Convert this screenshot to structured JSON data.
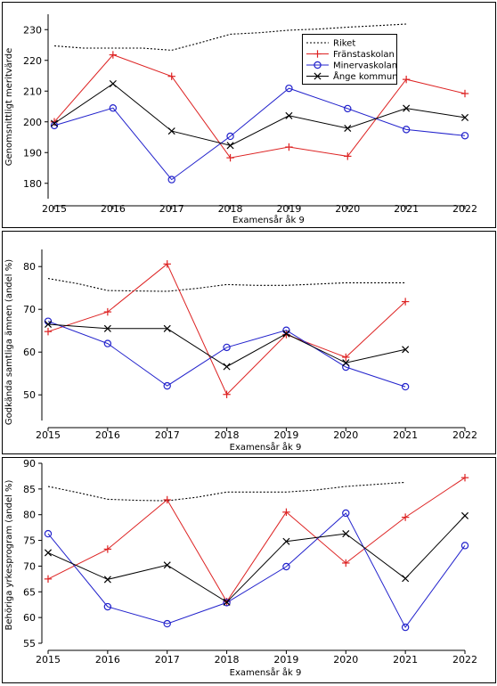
{
  "chart_data": [
    {
      "type": "line",
      "xlabel": "Examensår åk 9",
      "ylabel": "Genomsnittligt meritvärde",
      "xlim": [
        2015,
        2022
      ],
      "ylim": [
        175,
        235
      ],
      "xticks": [
        "2015",
        "2016",
        "2017",
        "2018",
        "2019",
        "2020",
        "2021",
        "2022"
      ],
      "yticks": [
        "180",
        "190",
        "200",
        "210",
        "220",
        "230"
      ],
      "legend": {
        "position": "top-right",
        "entries": [
          "Riket",
          "Fränstaskolan",
          "Minervaskolan",
          "Ånge kommun"
        ]
      },
      "series": [
        {
          "name": "Riket",
          "color": "#000000",
          "style": "dotted",
          "marker": "none",
          "x": [
            2015,
            2015.5,
            2016,
            2016.5,
            2017,
            2017.5,
            2018,
            2018.5,
            2019,
            2019.5,
            2020,
            2020.5,
            2021
          ],
          "y": [
            224.7,
            224.0,
            224.0,
            224.0,
            223.3,
            225.8,
            228.5,
            229.0,
            229.8,
            230.2,
            230.8,
            231.3,
            231.8
          ]
        },
        {
          "name": "Fränstaskolan",
          "color": "#dd2222",
          "style": "solid",
          "marker": "plus",
          "x": [
            2015,
            2016,
            2017,
            2018,
            2019,
            2020,
            2021,
            2022
          ],
          "y": [
            200.0,
            221.8,
            214.8,
            188.3,
            191.8,
            188.8,
            213.8,
            209.2
          ]
        },
        {
          "name": "Minervaskolan",
          "color": "#2222cc",
          "style": "solid",
          "marker": "circle",
          "x": [
            2015,
            2016,
            2017,
            2018,
            2019,
            2020,
            2021,
            2022
          ],
          "y": [
            198.8,
            204.5,
            181.2,
            195.3,
            210.9,
            204.3,
            197.5,
            195.5
          ]
        },
        {
          "name": "Ånge kommun",
          "color": "#000000",
          "style": "solid",
          "marker": "x",
          "x": [
            2015,
            2016,
            2017,
            2018,
            2019,
            2020,
            2021,
            2022
          ],
          "y": [
            199.5,
            212.4,
            197.0,
            192.3,
            202.0,
            197.9,
            204.4,
            201.4
          ]
        }
      ]
    },
    {
      "type": "line",
      "xlabel": "Examensår åk 9",
      "ylabel": "Godkända samtliga ämnen (andel %)",
      "xlim": [
        2015,
        2022
      ],
      "ylim": [
        44,
        84
      ],
      "xticks": [
        "2015",
        "2016",
        "2017",
        "2018",
        "2019",
        "2020",
        "2021",
        "2022"
      ],
      "yticks": [
        "50",
        "60",
        "70",
        "80"
      ],
      "series": [
        {
          "name": "Riket",
          "color": "#000000",
          "style": "dotted",
          "marker": "none",
          "x": [
            2015,
            2015.5,
            2016,
            2016.5,
            2017,
            2017.5,
            2018,
            2018.5,
            2019,
            2019.5,
            2020,
            2020.5,
            2021
          ],
          "y": [
            77.2,
            76.0,
            74.4,
            74.3,
            74.2,
            74.9,
            75.8,
            75.6,
            75.6,
            75.9,
            76.2,
            76.2,
            76.2
          ]
        },
        {
          "name": "Fränstaskolan",
          "color": "#dd2222",
          "style": "solid",
          "marker": "plus",
          "x": [
            2015,
            2016,
            2017,
            2018,
            2019,
            2020,
            2021
          ],
          "y": [
            64.8,
            69.4,
            80.6,
            50.1,
            64.1,
            58.8,
            71.8
          ]
        },
        {
          "name": "Minervaskolan",
          "color": "#2222cc",
          "style": "solid",
          "marker": "circle",
          "x": [
            2015,
            2016,
            2017,
            2018,
            2019,
            2020,
            2021
          ],
          "y": [
            67.2,
            62.0,
            52.1,
            61.1,
            65.1,
            56.5,
            51.9
          ]
        },
        {
          "name": "Ånge kommun",
          "color": "#000000",
          "style": "solid",
          "marker": "x",
          "x": [
            2015,
            2016,
            2017,
            2018,
            2019,
            2020,
            2021
          ],
          "y": [
            66.5,
            65.5,
            65.5,
            56.6,
            64.3,
            57.5,
            60.6
          ]
        }
      ]
    },
    {
      "type": "line",
      "xlabel": "Examensår åk 9",
      "ylabel": "Behöriga yrkesprogram (andel %)",
      "xlim": [
        2015,
        2022
      ],
      "ylim": [
        55,
        90
      ],
      "xticks": [
        "2015",
        "2016",
        "2017",
        "2018",
        "2019",
        "2020",
        "2021",
        "2022"
      ],
      "yticks": [
        "55",
        "60",
        "65",
        "70",
        "75",
        "80",
        "85",
        "90"
      ],
      "series": [
        {
          "name": "Riket",
          "color": "#000000",
          "style": "dotted",
          "marker": "none",
          "x": [
            2015,
            2015.5,
            2016,
            2016.5,
            2017,
            2017.5,
            2018,
            2018.5,
            2019,
            2019.5,
            2020,
            2020.5,
            2021
          ],
          "y": [
            85.5,
            84.3,
            83.0,
            82.8,
            82.7,
            83.4,
            84.4,
            84.4,
            84.4,
            84.8,
            85.5,
            85.9,
            86.3
          ]
        },
        {
          "name": "Fränstaskolan",
          "color": "#dd2222",
          "style": "solid",
          "marker": "plus",
          "x": [
            2015,
            2016,
            2017,
            2018,
            2019,
            2020,
            2021,
            2022
          ],
          "y": [
            67.5,
            73.3,
            82.9,
            63.1,
            80.5,
            70.6,
            79.5,
            87.2
          ]
        },
        {
          "name": "Minervaskolan",
          "color": "#2222cc",
          "style": "solid",
          "marker": "circle",
          "x": [
            2015,
            2016,
            2017,
            2018,
            2019,
            2020,
            2021,
            2022
          ],
          "y": [
            76.3,
            62.1,
            58.8,
            62.9,
            69.9,
            80.3,
            58.1,
            74.0
          ]
        },
        {
          "name": "Ånge kommun",
          "color": "#000000",
          "style": "solid",
          "marker": "x",
          "x": [
            2015,
            2016,
            2017,
            2018,
            2019,
            2020,
            2021,
            2022
          ],
          "y": [
            72.6,
            67.4,
            70.2,
            63.0,
            74.8,
            76.3,
            67.6,
            79.8
          ]
        }
      ]
    }
  ]
}
